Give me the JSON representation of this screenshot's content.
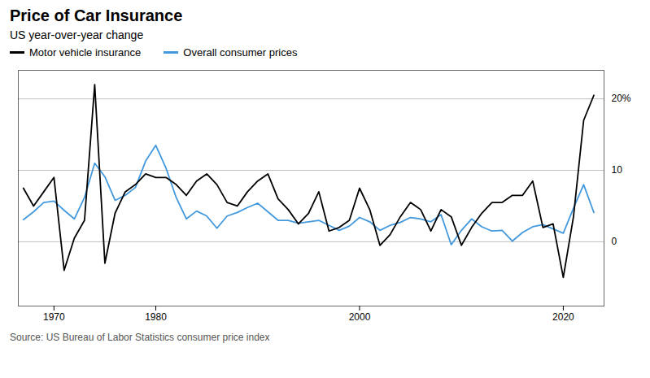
{
  "chart_data": {
    "type": "line",
    "title": "Price of Car Insurance",
    "subtitle": "US year-over-year change",
    "source": "Source: US Bureau of Labor Statistics consumer price index",
    "x": [
      1967,
      1968,
      1969,
      1970,
      1971,
      1972,
      1973,
      1974,
      1975,
      1976,
      1977,
      1978,
      1979,
      1980,
      1981,
      1982,
      1983,
      1984,
      1985,
      1986,
      1987,
      1988,
      1989,
      1990,
      1991,
      1992,
      1993,
      1994,
      1995,
      1996,
      1997,
      1998,
      1999,
      2000,
      2001,
      2002,
      2003,
      2004,
      2005,
      2006,
      2007,
      2008,
      2009,
      2010,
      2011,
      2012,
      2013,
      2014,
      2015,
      2016,
      2017,
      2018,
      2019,
      2020,
      2021,
      2022,
      2023
    ],
    "series": [
      {
        "name": "Motor vehicle insurance",
        "color": "#000000",
        "values": [
          7.5,
          5.0,
          7.0,
          9.0,
          -4.0,
          0.5,
          3.0,
          22.0,
          -3.0,
          4.0,
          7.0,
          8.0,
          9.5,
          9.0,
          9.0,
          8.0,
          6.5,
          8.5,
          9.5,
          8.0,
          5.5,
          5.0,
          7.0,
          8.5,
          9.5,
          6.0,
          4.5,
          2.5,
          4.0,
          7.0,
          1.5,
          2.0,
          3.0,
          7.5,
          4.5,
          -0.5,
          1.0,
          3.5,
          5.5,
          4.5,
          1.5,
          4.5,
          3.5,
          -0.5,
          2.0,
          4.0,
          5.5,
          5.5,
          6.5,
          6.5,
          8.5,
          2.0,
          2.5,
          -5.0,
          3.5,
          17.0,
          20.5
        ]
      },
      {
        "name": "Overall consumer prices",
        "color": "#4499dd",
        "values": [
          3.1,
          4.2,
          5.5,
          5.7,
          4.4,
          3.2,
          6.2,
          11.0,
          9.1,
          5.8,
          6.5,
          7.6,
          11.3,
          13.5,
          10.3,
          6.2,
          3.2,
          4.3,
          3.6,
          1.9,
          3.6,
          4.1,
          4.8,
          5.4,
          4.2,
          3.0,
          3.0,
          2.6,
          2.8,
          3.0,
          2.3,
          1.6,
          2.2,
          3.4,
          2.8,
          1.6,
          2.3,
          2.7,
          3.4,
          3.2,
          2.8,
          3.8,
          -0.4,
          1.6,
          3.2,
          2.1,
          1.5,
          1.6,
          0.1,
          1.3,
          2.1,
          2.4,
          1.8,
          1.2,
          4.7,
          8.0,
          4.1
        ]
      }
    ],
    "xlim": [
      1966.5,
      2024
    ],
    "xticks": [
      1970,
      1980,
      2000,
      2020
    ],
    "ylim": [
      -9,
      24
    ],
    "yticks": [
      0,
      10,
      {
        "value": 20,
        "label": "20%"
      }
    ],
    "grid": true,
    "legend": "top"
  }
}
